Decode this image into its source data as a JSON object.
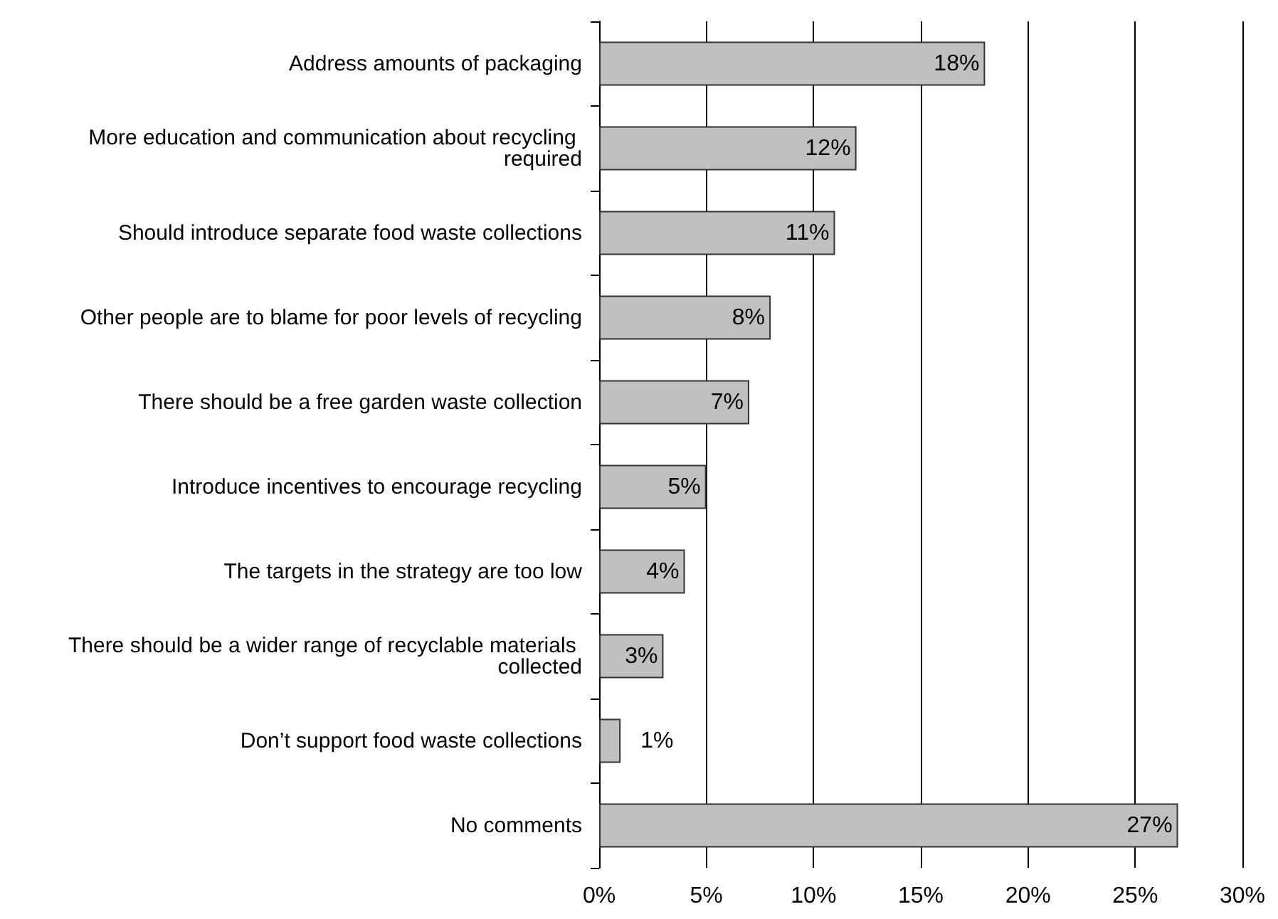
{
  "chart_data": {
    "type": "bar",
    "orientation": "horizontal",
    "categories": [
      "Address amounts of packaging",
      "More education and communication about recycling required",
      "Should introduce separate food waste collections",
      "Other people are to blame for poor levels of recycling",
      "There should be a free garden waste collection",
      "Introduce incentives to encourage recycling",
      "The targets in the strategy are too low",
      "There should be a wider range of recyclable materials collected",
      "Don’t support food waste collections",
      "No comments"
    ],
    "values": [
      18,
      12,
      11,
      8,
      7,
      5,
      4,
      3,
      1,
      27
    ],
    "value_labels": [
      "18%",
      "12%",
      "11%",
      "8%",
      "7%",
      "5%",
      "4%",
      "3%",
      "1%",
      "27%"
    ],
    "color": "#c0c0c0",
    "xlim": [
      0,
      30
    ],
    "xticks": [
      {
        "value": 0,
        "label": "0%"
      },
      {
        "value": 5,
        "label": "5%"
      },
      {
        "value": 10,
        "label": "10%"
      },
      {
        "value": 15,
        "label": "15%"
      },
      {
        "value": 20,
        "label": "20%"
      },
      {
        "value": 25,
        "label": "25%"
      },
      {
        "value": 30,
        "label": "30%"
      }
    ],
    "grid": "x"
  }
}
